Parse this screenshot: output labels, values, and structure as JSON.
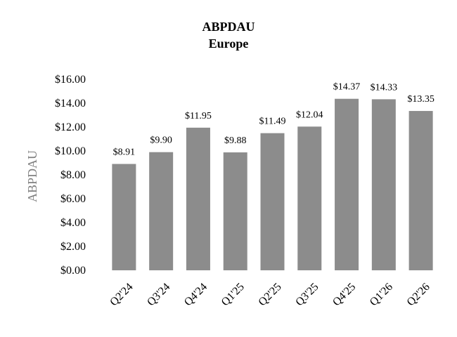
{
  "chart_data": {
    "type": "bar",
    "title": "ABPDAU",
    "subtitle": "Europe",
    "ylabel": "ABPDAU",
    "xlabel": "",
    "categories": [
      "Q2'24",
      "Q3'24",
      "Q4'24",
      "Q1'25",
      "Q2'25",
      "Q3'25",
      "Q4'25",
      "Q1'26",
      "Q2'26"
    ],
    "values": [
      8.91,
      9.9,
      11.95,
      9.88,
      11.49,
      12.04,
      14.37,
      14.33,
      13.35
    ],
    "data_labels": [
      "$8.91",
      "$9.90",
      "$11.95",
      "$9.88",
      "$11.49",
      "$12.04",
      "$14.37",
      "$14.33",
      "$13.35"
    ],
    "ylim": [
      0,
      16
    ],
    "yticks": [
      0,
      2,
      4,
      6,
      8,
      10,
      12,
      14,
      16
    ],
    "ytick_labels": [
      "$0.00",
      "$2.00",
      "$4.00",
      "$6.00",
      "$8.00",
      "$10.00",
      "$12.00",
      "$14.00",
      "$16.00"
    ],
    "grid": false,
    "legend": "none",
    "bar_color": "#8c8c8c"
  }
}
